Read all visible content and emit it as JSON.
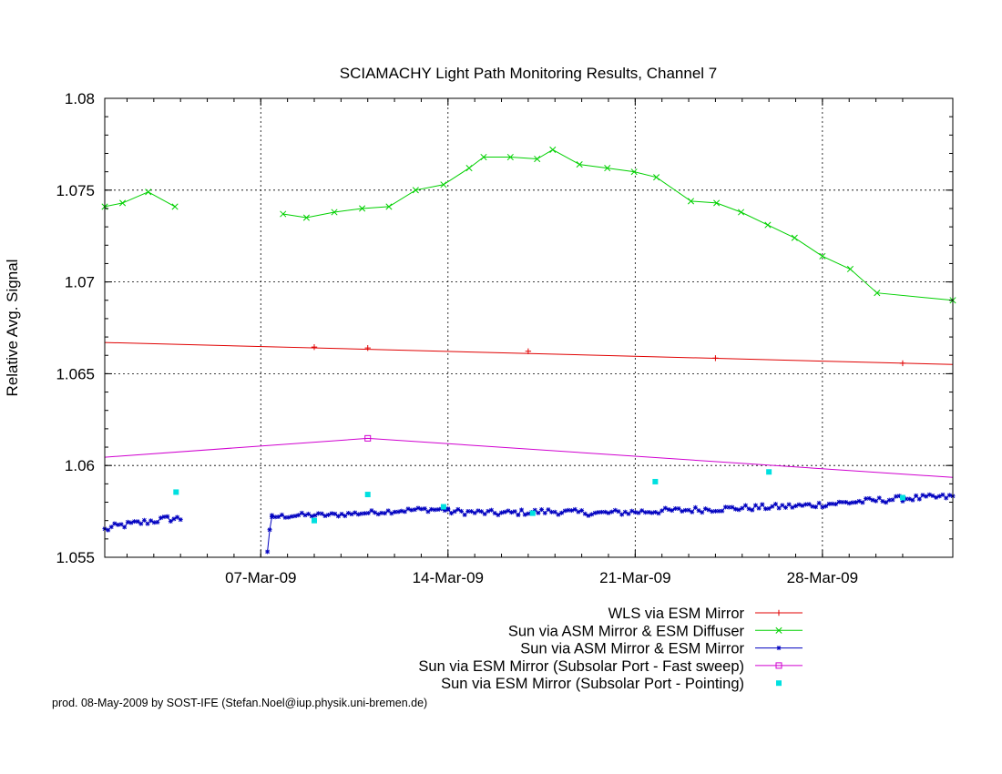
{
  "chart_data": {
    "type": "line",
    "title": "SCIAMACHY Light Path Monitoring Results, Channel 7",
    "xlabel": "",
    "ylabel": "Relative Avg. Signal",
    "x_range": [
      "2009-03-01T04:00",
      "2009-04-01T21:00"
    ],
    "y_range": [
      1.055,
      1.08
    ],
    "yticks": [
      "1.055",
      "1.06",
      "1.065",
      "1.07",
      "1.075",
      "1.08"
    ],
    "xticks": [
      {
        "date": "2009-03-07",
        "label": "07-Mar-09"
      },
      {
        "date": "2009-03-14",
        "label": "14-Mar-09"
      },
      {
        "date": "2009-03-21",
        "label": "21-Mar-09"
      },
      {
        "date": "2009-03-28",
        "label": "28-Mar-09"
      }
    ],
    "grid": true,
    "legend_position": "bottom-right, below plot",
    "series": [
      {
        "name": "WLS via ESM Mirror",
        "color": "#e00000",
        "style": "line",
        "marker": "plus",
        "points": [
          [
            "2009-03-01T04:00",
            1.0667
          ],
          [
            "2009-04-01T21:00",
            1.0655
          ]
        ],
        "markers": [
          [
            "2009-03-09T00:00",
            1.06645
          ],
          [
            "2009-03-11T00:00",
            1.0664
          ],
          [
            "2009-03-17T00:00",
            1.06622
          ],
          [
            "2009-03-24T00:00",
            1.06585
          ],
          [
            "2009-03-31T00:00",
            1.06557
          ]
        ]
      },
      {
        "name": "Sun via ASM Mirror & ESM Diffuser",
        "color": "#00d000",
        "style": "line",
        "marker": "x",
        "segments": [
          [
            [
              "2009-03-01T04:00",
              1.0741
            ],
            [
              "2009-03-01T20:00",
              1.0743
            ],
            [
              "2009-03-02T19:00",
              1.0749
            ],
            [
              "2009-03-03T19:00",
              1.0741
            ]
          ],
          [
            [
              "2009-03-07T20:00",
              1.0737
            ],
            [
              "2009-03-08T17:00",
              1.0735
            ],
            [
              "2009-03-09T18:00",
              1.0738
            ],
            [
              "2009-03-10T19:00",
              1.074
            ],
            [
              "2009-03-11T19:00",
              1.0741
            ],
            [
              "2009-03-12T19:00",
              1.075
            ],
            [
              "2009-03-13T20:00",
              1.0753
            ],
            [
              "2009-03-14T19:00",
              1.0762
            ],
            [
              "2009-03-15T08:00",
              1.0768
            ],
            [
              "2009-03-16T08:00",
              1.0768
            ],
            [
              "2009-03-17T08:00",
              1.0767
            ],
            [
              "2009-03-17T22:00",
              1.0772
            ],
            [
              "2009-03-18T22:00",
              1.0764
            ],
            [
              "2009-03-19T23:00",
              1.0762
            ],
            [
              "2009-03-20T23:00",
              1.076
            ],
            [
              "2009-03-21T19:00",
              1.0757
            ],
            [
              "2009-03-23T02:00",
              1.0744
            ],
            [
              "2009-03-24T01:00",
              1.0743
            ],
            [
              "2009-03-24T23:00",
              1.0738
            ],
            [
              "2009-03-25T23:00",
              1.0731
            ],
            [
              "2009-03-26T23:00",
              1.0724
            ],
            [
              "2009-03-28T00:00",
              1.0714
            ],
            [
              "2009-03-29T01:00",
              1.0707
            ],
            [
              "2009-03-30T01:00",
              1.0694
            ],
            [
              "2009-04-01T21:00",
              1.069
            ]
          ]
        ]
      },
      {
        "name": "Sun via ASM Mirror & ESM Mirror",
        "color": "#0000c0",
        "style": "linespoints",
        "marker": "star",
        "segments": [
          {
            "from": "2009-03-01T04:00",
            "to": "2009-03-04T00:00",
            "levels": [
              1.0565,
              1.0567,
              1.0568,
              1.0569,
              1.057,
              1.0571,
              1.0571
            ],
            "noise": 0.00018
          },
          {
            "from": "2009-03-07T06:00",
            "to": "2009-03-07T10:00",
            "levels": [
              1.0553,
              1.0565,
              1.0572
            ],
            "noise": 0.0
          },
          {
            "from": "2009-03-07T10:00",
            "to": "2009-03-14T00:00",
            "levels": [
              1.0572,
              1.0573,
              1.0573,
              1.0574,
              1.0575,
              1.0576,
              1.0576
            ],
            "noise": 0.00012
          },
          {
            "from": "2009-03-14T00:00",
            "to": "2009-04-01T21:00",
            "levels": [
              1.0575,
              1.0574,
              1.0575,
              1.0574,
              1.0575,
              1.0576,
              1.0577,
              1.0578,
              1.058,
              1.0582,
              1.0583
            ],
            "noise": 0.00016
          }
        ]
      },
      {
        "name": "Sun via ESM Mirror (Subsolar Port - Fast sweep)",
        "color": "#d000d0",
        "style": "line",
        "marker": "square",
        "points": [
          [
            "2009-03-01T04:00",
            1.06045
          ],
          [
            "2009-03-11T00:00",
            1.06148
          ],
          [
            "2009-04-01T21:00",
            1.05935
          ]
        ],
        "markers": [
          [
            "2009-03-11T00:00",
            1.06148
          ]
        ]
      },
      {
        "name": "Sun via ESM Mirror (Subsolar Port - Pointing)",
        "color": "#00e0e0",
        "style": "points",
        "marker": "filled-square",
        "points": [
          [
            "2009-03-03T20:00",
            1.05855
          ],
          [
            "2009-03-09T00:00",
            1.057
          ],
          [
            "2009-03-11T00:00",
            1.05842
          ],
          [
            "2009-03-13T20:00",
            1.05775
          ],
          [
            "2009-03-17T04:00",
            1.0574
          ],
          [
            "2009-03-21T18:00",
            1.05912
          ],
          [
            "2009-03-26T00:00",
            1.05965
          ],
          [
            "2009-03-31T00:00",
            1.05825
          ]
        ]
      }
    ]
  },
  "footer": "prod. 08-May-2009 by SOST-IFE (Stefan.Noel@iup.physik.uni-bremen.de)"
}
